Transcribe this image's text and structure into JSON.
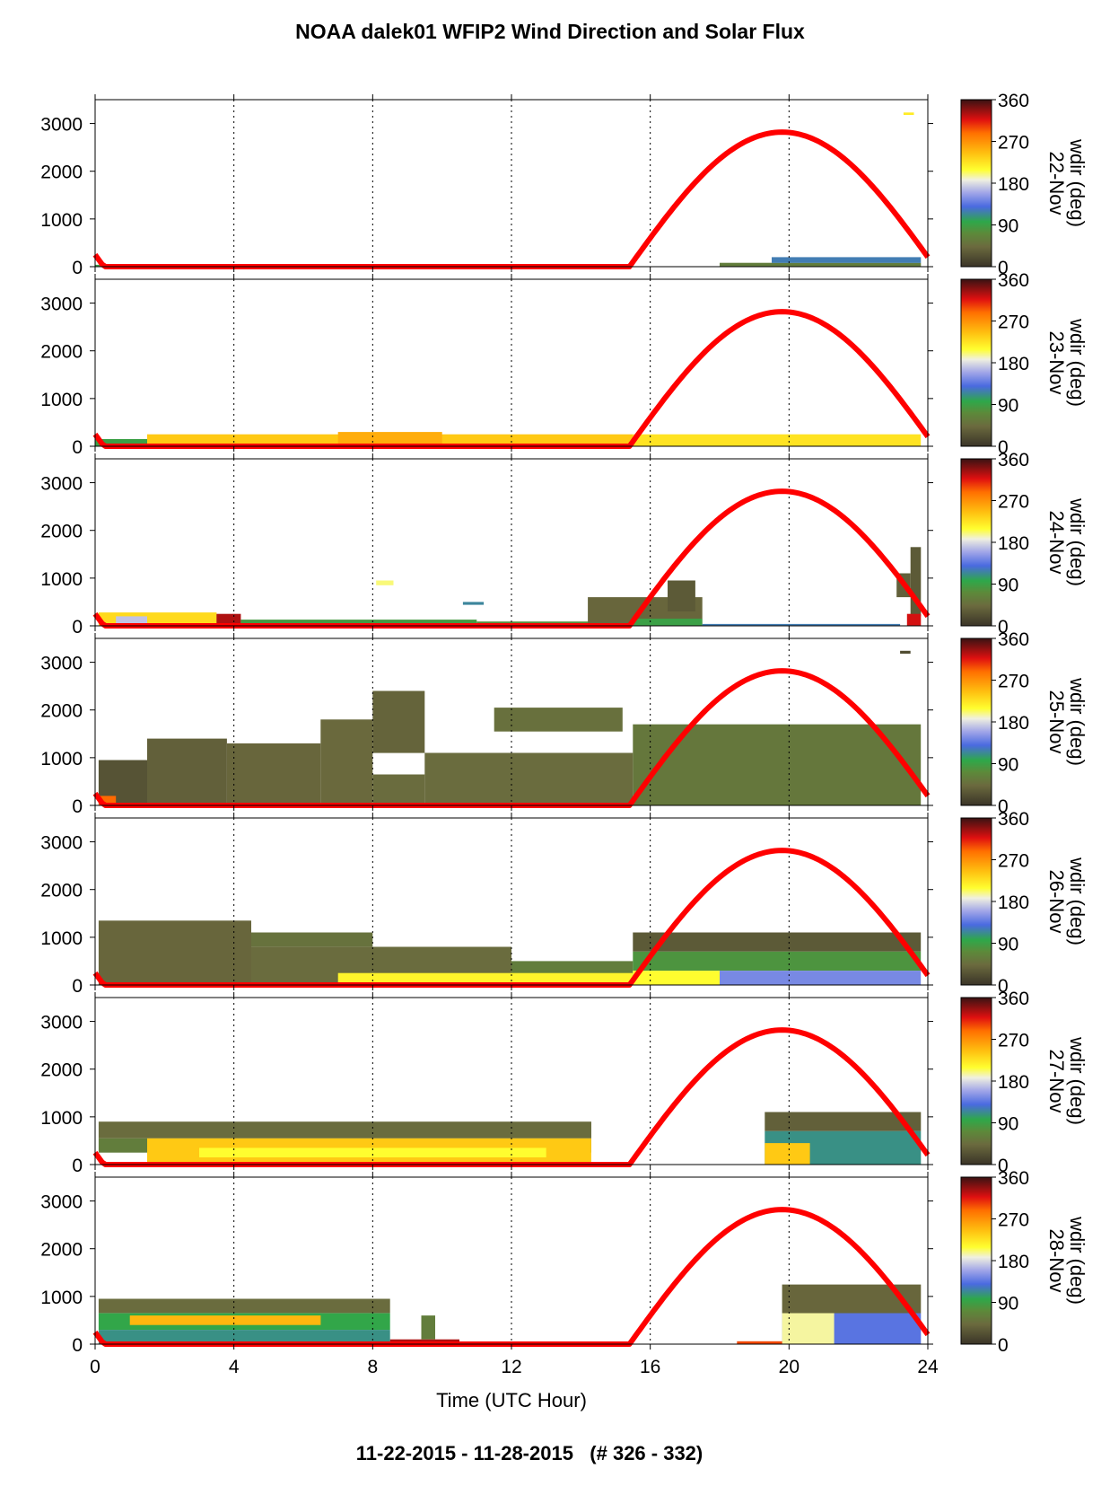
{
  "title": "NOAA dalek01 WFIP2 Wind Direction and Solar Flux",
  "footer": "11-22-2015 - 11-28-2015   (# 326 - 332)",
  "chart_data": {
    "type": "heatmap",
    "title": "NOAA dalek01 WFIP2 Wind Direction and Solar Flux",
    "xlabel": "Time (UTC Hour)",
    "xlim": [
      0,
      24
    ],
    "xticks": [
      "0",
      "4",
      "8",
      "12",
      "16",
      "20",
      "24"
    ],
    "ylim": [
      0,
      3500
    ],
    "yticks": [
      "0",
      "1000",
      "2000",
      "3000"
    ],
    "colorbar": {
      "label": "wdir (deg)",
      "range": [
        0,
        360
      ],
      "ticks": [
        "0",
        "90",
        "180",
        "270",
        "360"
      ]
    },
    "solar_curve": {
      "color": "#ff0000",
      "sunrise": 15.4,
      "sunset": 24,
      "peak_hour": 19.8,
      "peak_value": 2820,
      "night_start_value": 250
    },
    "panels": [
      {
        "date": "22-Nov",
        "blocks": [
          {
            "t0": 18,
            "t1": 23.8,
            "h0": 0,
            "h1": 80,
            "wd": 60
          },
          {
            "t0": 19.5,
            "t1": 23.8,
            "h0": 80,
            "h1": 200,
            "wd": 120
          },
          {
            "t0": 0,
            "t1": 1.5,
            "h0": 0,
            "h1": 40,
            "wd": 90
          },
          {
            "t0": 8.8,
            "t1": 12,
            "h0": 0,
            "h1": 40,
            "wd": 300
          },
          {
            "t0": 23.3,
            "t1": 23.6,
            "h0": 3180,
            "h1": 3230,
            "wd": 220
          }
        ]
      },
      {
        "date": "23-Nov",
        "blocks": [
          {
            "t0": 0,
            "t1": 1.5,
            "h0": 0,
            "h1": 150,
            "wd": 90
          },
          {
            "t0": 1.5,
            "t1": 15.5,
            "h0": 0,
            "h1": 250,
            "wd": 240
          },
          {
            "t0": 7,
            "t1": 10,
            "h0": 0,
            "h1": 300,
            "wd": 255
          },
          {
            "t0": 15.5,
            "t1": 23.8,
            "h0": 0,
            "h1": 250,
            "wd": 225
          }
        ]
      },
      {
        "date": "24-Nov",
        "blocks": [
          {
            "t0": 0.1,
            "t1": 3.5,
            "h0": 0,
            "h1": 280,
            "wd": 230
          },
          {
            "t0": 0.6,
            "t1": 1.5,
            "h0": 40,
            "h1": 200,
            "wd": 170
          },
          {
            "t0": 3.5,
            "t1": 4.2,
            "h0": 0,
            "h1": 250,
            "wd": 330
          },
          {
            "t0": 4.2,
            "t1": 11,
            "h0": 0,
            "h1": 130,
            "wd": 85
          },
          {
            "t0": 11,
            "t1": 14.5,
            "h0": 0,
            "h1": 90,
            "wd": 75
          },
          {
            "t0": 14.2,
            "t1": 17.5,
            "h0": 0,
            "h1": 600,
            "wd": 40
          },
          {
            "t0": 15.5,
            "t1": 17.5,
            "h0": 0,
            "h1": 150,
            "wd": 90
          },
          {
            "t0": 16.5,
            "t1": 17.3,
            "h0": 300,
            "h1": 950,
            "wd": 30
          },
          {
            "t0": 8.1,
            "t1": 8.6,
            "h0": 850,
            "h1": 950,
            "wd": 200
          },
          {
            "t0": 10.6,
            "t1": 11.2,
            "h0": 440,
            "h1": 500,
            "wd": 115
          },
          {
            "t0": 17.5,
            "t1": 23.2,
            "h0": 0,
            "h1": 40,
            "wd": 120
          },
          {
            "t0": 23.1,
            "t1": 23.5,
            "h0": 600,
            "h1": 1100,
            "wd": 35
          },
          {
            "t0": 23.5,
            "t1": 23.8,
            "h0": 200,
            "h1": 1650,
            "wd": 30
          },
          {
            "t0": 23.4,
            "t1": 23.8,
            "h0": 0,
            "h1": 250,
            "wd": 320
          }
        ]
      },
      {
        "date": "25-Nov",
        "blocks": [
          {
            "t0": 0.1,
            "t1": 1.5,
            "h0": 0,
            "h1": 950,
            "wd": 25
          },
          {
            "t0": 1.5,
            "t1": 3.8,
            "h0": 0,
            "h1": 1400,
            "wd": 35
          },
          {
            "t0": 3.8,
            "t1": 6.5,
            "h0": 0,
            "h1": 1300,
            "wd": 40
          },
          {
            "t0": 6.5,
            "t1": 8,
            "h0": 0,
            "h1": 1800,
            "wd": 42
          },
          {
            "t0": 8,
            "t1": 9.5,
            "h0": 1100,
            "h1": 2400,
            "wd": 38
          },
          {
            "t0": 8,
            "t1": 9.5,
            "h0": 0,
            "h1": 650,
            "wd": 45
          },
          {
            "t0": 9.5,
            "t1": 15.5,
            "h0": 0,
            "h1": 1100,
            "wd": 45
          },
          {
            "t0": 11.5,
            "t1": 15.2,
            "h0": 1550,
            "h1": 2050,
            "wd": 48
          },
          {
            "t0": 15.5,
            "t1": 23.8,
            "h0": 0,
            "h1": 1700,
            "wd": 55
          },
          {
            "t0": 0.1,
            "t1": 0.6,
            "h0": 0,
            "h1": 200,
            "wd": 290
          },
          {
            "t0": 23.2,
            "t1": 23.5,
            "h0": 3180,
            "h1": 3240,
            "wd": 20
          }
        ]
      },
      {
        "date": "26-Nov",
        "blocks": [
          {
            "t0": 0.1,
            "t1": 4.5,
            "h0": 0,
            "h1": 1350,
            "wd": 40
          },
          {
            "t0": 4.5,
            "t1": 12,
            "h0": 0,
            "h1": 800,
            "wd": 45
          },
          {
            "t0": 4.5,
            "t1": 8,
            "h0": 800,
            "h1": 1100,
            "wd": 50
          },
          {
            "t0": 12,
            "t1": 15.5,
            "h0": 0,
            "h1": 500,
            "wd": 60
          },
          {
            "t0": 15.5,
            "t1": 23.8,
            "h0": 700,
            "h1": 1100,
            "wd": 30
          },
          {
            "t0": 15.5,
            "t1": 23.8,
            "h0": 300,
            "h1": 700,
            "wd": 80
          },
          {
            "t0": 7,
            "t1": 15.5,
            "h0": 0,
            "h1": 250,
            "wd": 215
          },
          {
            "t0": 15.5,
            "t1": 23.8,
            "h0": 0,
            "h1": 300,
            "wd": 145
          },
          {
            "t0": 15.5,
            "t1": 18,
            "h0": 0,
            "h1": 300,
            "wd": 210
          }
        ]
      },
      {
        "date": "27-Nov",
        "blocks": [
          {
            "t0": 0.1,
            "t1": 14.3,
            "h0": 550,
            "h1": 900,
            "wd": 45
          },
          {
            "t0": 0.1,
            "t1": 14.3,
            "h0": 250,
            "h1": 550,
            "wd": 60
          },
          {
            "t0": 1.5,
            "t1": 14.3,
            "h0": 0,
            "h1": 550,
            "wd": 240
          },
          {
            "t0": 3,
            "t1": 13,
            "h0": 150,
            "h1": 350,
            "wd": 210
          },
          {
            "t0": 19.3,
            "t1": 23.8,
            "h0": 700,
            "h1": 1100,
            "wd": 35
          },
          {
            "t0": 19.3,
            "t1": 23.8,
            "h0": 0,
            "h1": 700,
            "wd": 110
          },
          {
            "t0": 19.3,
            "t1": 20.6,
            "h0": 0,
            "h1": 450,
            "wd": 240
          }
        ]
      },
      {
        "date": "28-Nov",
        "blocks": [
          {
            "t0": 0.1,
            "t1": 8.5,
            "h0": 650,
            "h1": 950,
            "wd": 45
          },
          {
            "t0": 0.1,
            "t1": 8.5,
            "h0": 300,
            "h1": 650,
            "wd": 95
          },
          {
            "t0": 0.1,
            "t1": 8.5,
            "h0": 0,
            "h1": 300,
            "wd": 110
          },
          {
            "t0": 1,
            "t1": 6.5,
            "h0": 400,
            "h1": 600,
            "wd": 250
          },
          {
            "t0": 8.5,
            "t1": 10.5,
            "h0": 0,
            "h1": 100,
            "wd": 330
          },
          {
            "t0": 9.4,
            "t1": 9.8,
            "h0": 100,
            "h1": 600,
            "wd": 60
          },
          {
            "t0": 19.8,
            "t1": 23.8,
            "h0": 650,
            "h1": 1250,
            "wd": 40
          },
          {
            "t0": 19.8,
            "t1": 23.8,
            "h0": 0,
            "h1": 650,
            "wd": 135
          },
          {
            "t0": 19.8,
            "t1": 21.3,
            "h0": 0,
            "h1": 650,
            "wd": 195
          },
          {
            "t0": 18.5,
            "t1": 19.8,
            "h0": 0,
            "h1": 60,
            "wd": 300
          }
        ]
      }
    ]
  }
}
